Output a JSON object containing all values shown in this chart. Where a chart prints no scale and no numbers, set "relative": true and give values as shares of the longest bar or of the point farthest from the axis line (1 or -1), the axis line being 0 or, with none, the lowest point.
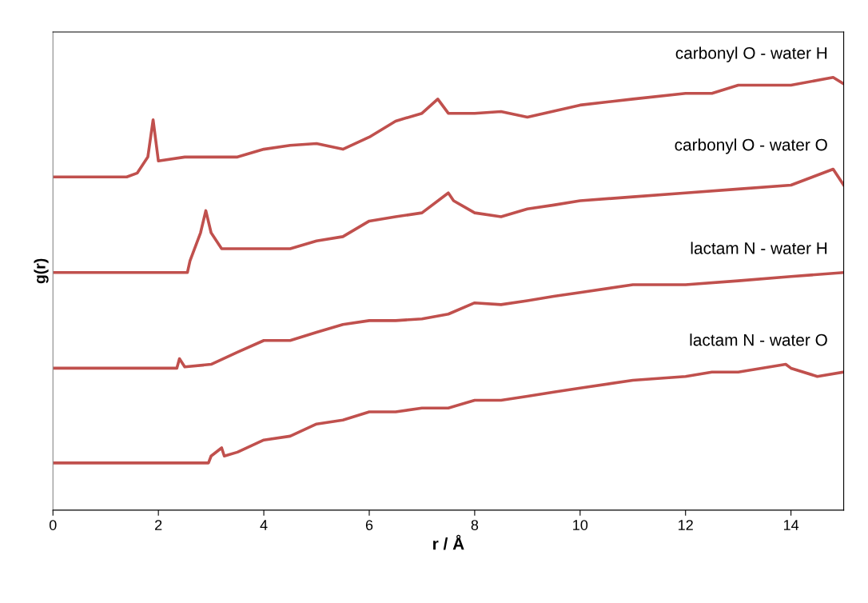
{
  "chart_data": {
    "type": "line",
    "xlabel": "r / Å",
    "ylabel": "g(r)",
    "relative": true,
    "xlim": [
      0,
      15
    ],
    "xticks": [
      0,
      2,
      4,
      6,
      8,
      10,
      12,
      14
    ],
    "grid": false,
    "marker": "none",
    "line_style": "solid",
    "series": [
      {
        "name": "carbonyl O - water H",
        "color": "#c0504d",
        "x": [
          0,
          1.4,
          1.6,
          1.8,
          1.9,
          2.0,
          2.5,
          3,
          3.5,
          4,
          4.5,
          5,
          5.5,
          6,
          6.5,
          7,
          7.3,
          7.5,
          8,
          8.5,
          9,
          10,
          11,
          12,
          12.5,
          13,
          14,
          14.8,
          15
        ],
        "values": [
          0.77,
          0.77,
          0.779,
          0.816,
          0.902,
          0.807,
          0.816,
          0.816,
          0.816,
          0.834,
          0.843,
          0.847,
          0.834,
          0.862,
          0.899,
          0.917,
          0.95,
          0.917,
          0.917,
          0.921,
          0.908,
          0.936,
          0.95,
          0.963,
          0.963,
          0.982,
          0.982,
          1.0,
          0.985
        ]
      },
      {
        "name": "carbonyl O - water O",
        "color": "#c0504d",
        "x": [
          0,
          2.55,
          2.6,
          2.8,
          2.9,
          3.0,
          3.2,
          3.5,
          4,
          4.5,
          5,
          5.5,
          6,
          6.5,
          7,
          7.5,
          7.6,
          8,
          8.5,
          9,
          9.5,
          10,
          11,
          12,
          13,
          14,
          14.8,
          15
        ],
        "values": [
          0.549,
          0.549,
          0.576,
          0.641,
          0.692,
          0.641,
          0.604,
          0.604,
          0.604,
          0.604,
          0.622,
          0.632,
          0.668,
          0.678,
          0.687,
          0.733,
          0.715,
          0.687,
          0.678,
          0.696,
          0.705,
          0.715,
          0.724,
          0.733,
          0.742,
          0.751,
          0.788,
          0.751
        ]
      },
      {
        "name": "lactam N - water H",
        "color": "#c0504d",
        "x": [
          0,
          2.35,
          2.4,
          2.5,
          3,
          3.5,
          4,
          4.5,
          5,
          5.5,
          6,
          6.5,
          7,
          7.5,
          8,
          8.5,
          9,
          9.5,
          10,
          11,
          12,
          13,
          14,
          15
        ],
        "values": [
          0.328,
          0.328,
          0.35,
          0.331,
          0.337,
          0.365,
          0.392,
          0.392,
          0.411,
          0.429,
          0.438,
          0.438,
          0.442,
          0.453,
          0.479,
          0.475,
          0.484,
          0.494,
          0.503,
          0.521,
          0.521,
          0.53,
          0.54,
          0.549
        ]
      },
      {
        "name": "lactam N - water O",
        "color": "#c0504d",
        "x": [
          0,
          2.95,
          3.0,
          3.2,
          3.25,
          3.5,
          4,
          4.5,
          5,
          5.5,
          6,
          6.5,
          7,
          7.5,
          8,
          8.5,
          9,
          9.5,
          10,
          11,
          12,
          12.5,
          13,
          13.9,
          14,
          14.5,
          15
        ],
        "values": [
          0.109,
          0.109,
          0.125,
          0.144,
          0.125,
          0.134,
          0.162,
          0.171,
          0.199,
          0.208,
          0.227,
          0.227,
          0.236,
          0.236,
          0.254,
          0.254,
          0.263,
          0.273,
          0.282,
          0.3,
          0.309,
          0.319,
          0.319,
          0.337,
          0.328,
          0.309,
          0.319
        ]
      }
    ]
  }
}
